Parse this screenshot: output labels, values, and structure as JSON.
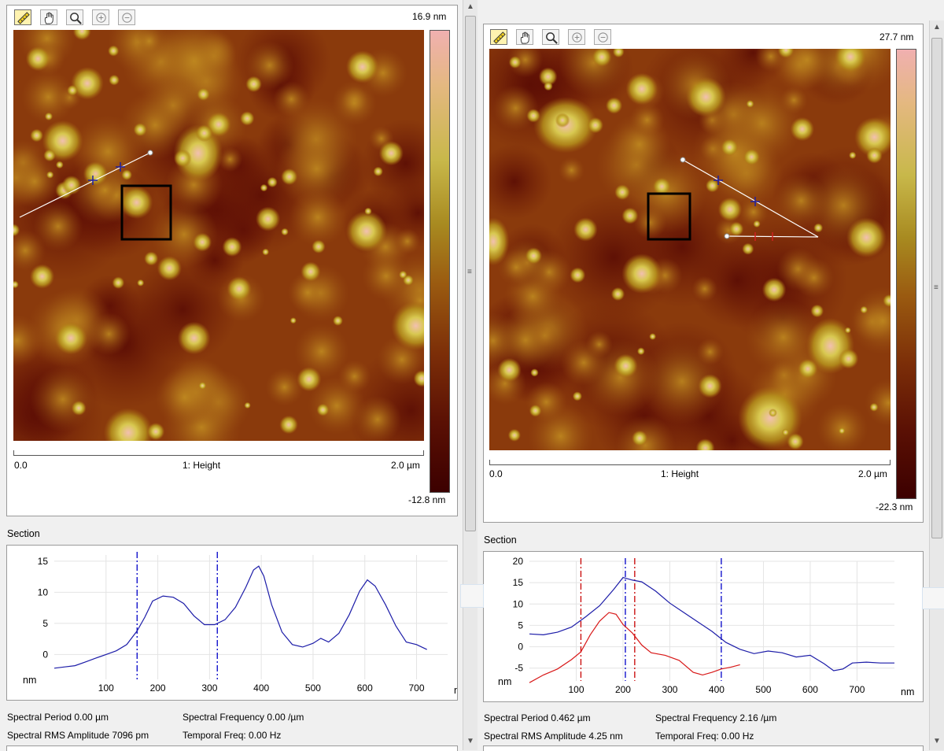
{
  "left_panel": {
    "toolbar": [
      {
        "icon": "ruler-icon",
        "active": true
      },
      {
        "icon": "hand-icon",
        "active": false
      },
      {
        "icon": "magnifier-icon",
        "active": false
      },
      {
        "icon": "zoom-in-icon",
        "active": false
      },
      {
        "icon": "zoom-out-icon",
        "active": false
      }
    ],
    "z_max": "16.9 nm",
    "z_min": "-12.8 nm",
    "scale_start": "0.0",
    "scale_end": "2.0 µm",
    "channel": "1: Height",
    "section_label": "Section",
    "spectral_period": "Spectral Period 0.00 µm",
    "spectral_frequency": "Spectral Frequency 0.00 /µm",
    "spectral_rms": "Spectral RMS Amplitude 7096 pm",
    "temporal_freq": "Temporal Freq: 0.00 Hz"
  },
  "right_panel": {
    "toolbar": [
      {
        "icon": "ruler-icon",
        "active": true
      },
      {
        "icon": "hand-icon",
        "active": false
      },
      {
        "icon": "magnifier-icon",
        "active": false
      },
      {
        "icon": "zoom-in-icon",
        "active": false
      },
      {
        "icon": "zoom-out-icon",
        "active": false
      }
    ],
    "z_max": "27.7 nm",
    "z_min": "-22.3 nm",
    "scale_start": "0.0",
    "scale_end": "2.0 µm",
    "channel": "1: Height",
    "section_label": "Section",
    "spectral_period": "Spectral Period 0.462 µm",
    "spectral_frequency": "Spectral Frequency 2.16 /µm",
    "spectral_rms": "Spectral RMS Amplitude 4.25 nm",
    "temporal_freq": "Temporal Freq: 0.00 Hz"
  },
  "chart_data": [
    {
      "type": "line",
      "xlabel": "nm",
      "ylabel": "nm",
      "xlim": [
        0,
        760
      ],
      "ylim": [
        -4,
        16
      ],
      "xticks": [
        100,
        200,
        300,
        400,
        500,
        600,
        700
      ],
      "yticks": [
        0,
        5,
        10,
        15
      ],
      "cursors": [
        {
          "x": 160,
          "color": "#0000c8"
        },
        {
          "x": 315,
          "color": "#0000c8"
        }
      ],
      "series": [
        {
          "color": "#1c1ca8",
          "points": [
            [
              0,
              -2.2
            ],
            [
              20,
              -2.0
            ],
            [
              40,
              -1.8
            ],
            [
              60,
              -1.2
            ],
            [
              80,
              -0.6
            ],
            [
              100,
              0
            ],
            [
              120,
              0.6
            ],
            [
              140,
              1.6
            ],
            [
              160,
              3.8
            ],
            [
              175,
              6
            ],
            [
              190,
              8.6
            ],
            [
              210,
              9.4
            ],
            [
              230,
              9.2
            ],
            [
              250,
              8.2
            ],
            [
              270,
              6.2
            ],
            [
              290,
              4.8
            ],
            [
              310,
              4.8
            ],
            [
              330,
              5.6
            ],
            [
              350,
              7.6
            ],
            [
              370,
              10.8
            ],
            [
              385,
              13.6
            ],
            [
              395,
              14.2
            ],
            [
              405,
              12.6
            ],
            [
              420,
              8
            ],
            [
              440,
              3.6
            ],
            [
              460,
              1.6
            ],
            [
              480,
              1.2
            ],
            [
              500,
              1.8
            ],
            [
              515,
              2.6
            ],
            [
              530,
              2
            ],
            [
              550,
              3.4
            ],
            [
              570,
              6.4
            ],
            [
              590,
              10.2
            ],
            [
              605,
              12
            ],
            [
              620,
              11
            ],
            [
              640,
              8
            ],
            [
              660,
              4.6
            ],
            [
              680,
              2
            ],
            [
              700,
              1.6
            ],
            [
              720,
              0.8
            ]
          ]
        }
      ]
    },
    {
      "type": "line",
      "xlabel": "nm",
      "ylabel": "nm",
      "xlim": [
        0,
        780
      ],
      "ylim": [
        -8,
        20
      ],
      "xticks": [
        100,
        200,
        300,
        400,
        500,
        600,
        700
      ],
      "yticks": [
        -5,
        0,
        5,
        10,
        15,
        20
      ],
      "cursors": [
        {
          "x": 110,
          "color": "#c80000"
        },
        {
          "x": 225,
          "color": "#c80000"
        },
        {
          "x": 205,
          "color": "#0000c8"
        },
        {
          "x": 410,
          "color": "#0000c8"
        }
      ],
      "series": [
        {
          "color": "#1c1ca8",
          "points": [
            [
              0,
              3
            ],
            [
              30,
              2.8
            ],
            [
              60,
              3.4
            ],
            [
              90,
              4.6
            ],
            [
              120,
              7
            ],
            [
              150,
              9.6
            ],
            [
              180,
              13.4
            ],
            [
              200,
              16.2
            ],
            [
              220,
              15.6
            ],
            [
              240,
              15.2
            ],
            [
              270,
              13
            ],
            [
              300,
              10.2
            ],
            [
              330,
              8
            ],
            [
              360,
              5.8
            ],
            [
              390,
              3.6
            ],
            [
              420,
              1
            ],
            [
              450,
              -0.6
            ],
            [
              480,
              -1.6
            ],
            [
              510,
              -1
            ],
            [
              540,
              -1.4
            ],
            [
              570,
              -2.4
            ],
            [
              600,
              -2
            ],
            [
              630,
              -4
            ],
            [
              650,
              -5.6
            ],
            [
              670,
              -5.2
            ],
            [
              690,
              -3.8
            ],
            [
              720,
              -3.6
            ],
            [
              750,
              -3.8
            ],
            [
              780,
              -3.8
            ]
          ]
        },
        {
          "color": "#d81818",
          "points": [
            [
              0,
              -8.4
            ],
            [
              30,
              -6.6
            ],
            [
              60,
              -5.2
            ],
            [
              90,
              -3
            ],
            [
              110,
              -1.2
            ],
            [
              130,
              2.8
            ],
            [
              150,
              6
            ],
            [
              170,
              8
            ],
            [
              185,
              7.6
            ],
            [
              200,
              5.2
            ],
            [
              220,
              3.2
            ],
            [
              240,
              0.4
            ],
            [
              260,
              -1.4
            ],
            [
              290,
              -2
            ],
            [
              320,
              -3.2
            ],
            [
              350,
              -6
            ],
            [
              370,
              -6.6
            ],
            [
              390,
              -6
            ],
            [
              410,
              -5.2
            ],
            [
              430,
              -4.8
            ],
            [
              450,
              -4.2
            ]
          ]
        }
      ]
    }
  ]
}
